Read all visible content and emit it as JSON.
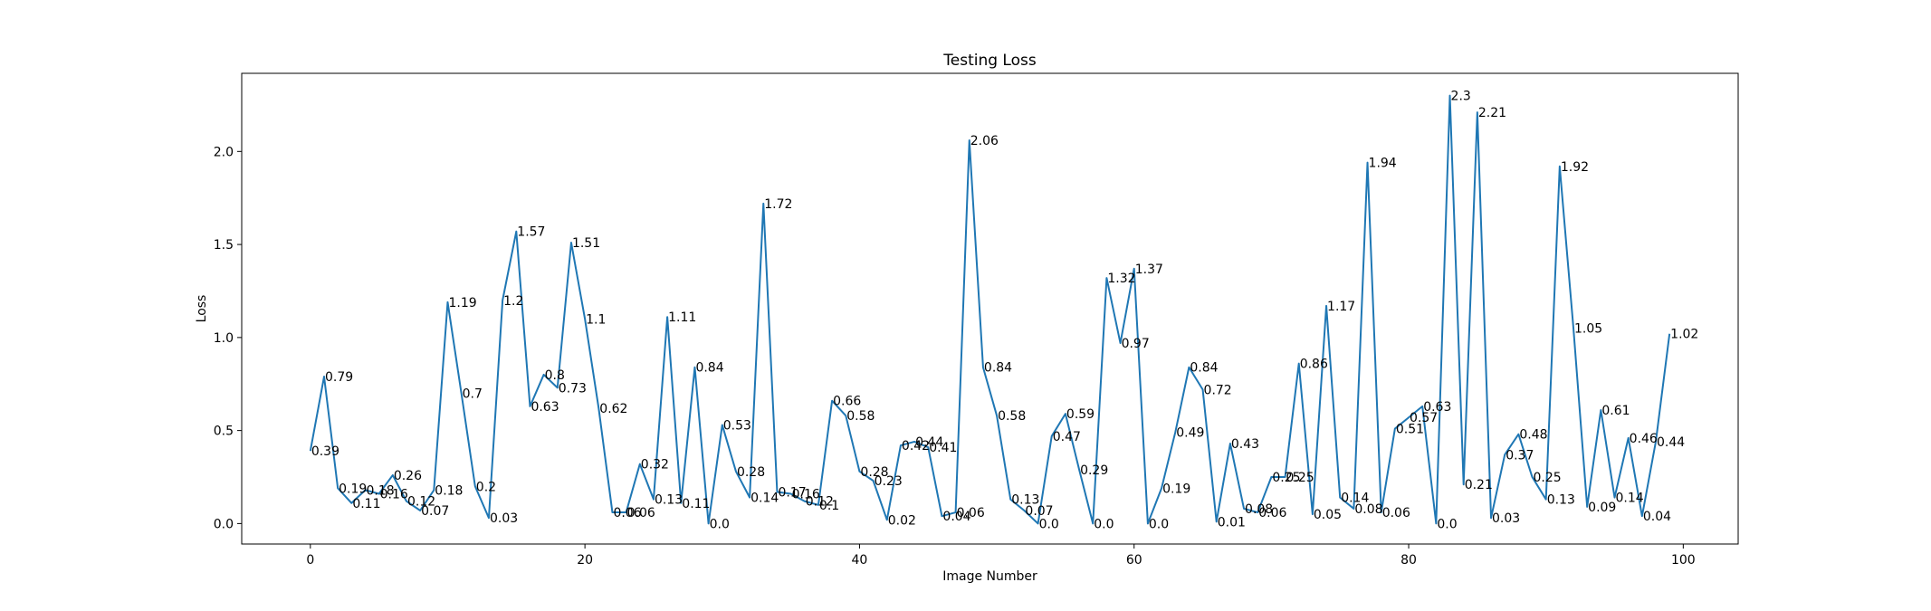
{
  "chart_data": {
    "type": "line",
    "title": "Testing Loss",
    "xlabel": "Image Number",
    "ylabel": "Loss",
    "xlim": [
      -5,
      104
    ],
    "ylim": [
      -0.11,
      2.42
    ],
    "xticks": [
      0,
      20,
      40,
      60,
      80,
      100
    ],
    "xtick_labels": [
      "0",
      "20",
      "40",
      "60",
      "80",
      "100"
    ],
    "yticks": [
      0.0,
      0.5,
      1.0,
      1.5,
      2.0
    ],
    "ytick_labels": [
      "0.0",
      "0.5",
      "1.0",
      "1.5",
      "2.0"
    ],
    "grid": false,
    "line_color": "#1f77b4",
    "x": [
      0,
      1,
      2,
      3,
      4,
      5,
      6,
      7,
      8,
      9,
      10,
      11,
      12,
      13,
      14,
      15,
      16,
      17,
      18,
      19,
      20,
      21,
      22,
      23,
      24,
      25,
      26,
      27,
      28,
      29,
      30,
      31,
      32,
      33,
      34,
      35,
      36,
      37,
      38,
      39,
      40,
      41,
      42,
      43,
      44,
      45,
      46,
      47,
      48,
      49,
      50,
      51,
      52,
      53,
      54,
      55,
      56,
      57,
      58,
      59,
      60,
      61,
      62,
      63,
      64,
      65,
      66,
      67,
      68,
      69,
      70,
      71,
      72,
      73,
      74,
      75,
      76,
      77,
      78,
      79,
      80,
      81,
      82,
      83,
      84,
      85,
      86,
      87,
      88,
      89,
      90,
      91,
      92,
      93,
      94,
      95,
      96,
      97,
      98,
      99
    ],
    "values": [
      0.39,
      0.79,
      0.19,
      0.11,
      0.18,
      0.16,
      0.26,
      0.12,
      0.07,
      0.18,
      1.19,
      0.7,
      0.2,
      0.03,
      1.2,
      1.57,
      0.63,
      0.8,
      0.73,
      1.51,
      1.1,
      0.62,
      0.06,
      0.06,
      0.32,
      0.13,
      1.11,
      0.11,
      0.84,
      0.0,
      0.53,
      0.28,
      0.14,
      1.72,
      0.17,
      0.16,
      0.12,
      0.1,
      0.66,
      0.58,
      0.28,
      0.23,
      0.02,
      0.42,
      0.44,
      0.41,
      0.04,
      0.06,
      2.06,
      0.84,
      0.58,
      0.13,
      0.07,
      0.0,
      0.47,
      0.59,
      0.29,
      0.0,
      1.32,
      0.97,
      1.37,
      0.0,
      0.19,
      0.49,
      0.84,
      0.72,
      0.01,
      0.43,
      0.08,
      0.06,
      0.25,
      0.25,
      0.86,
      0.05,
      1.17,
      0.14,
      0.08,
      1.94,
      0.06,
      0.51,
      0.57,
      0.63,
      0.0,
      2.3,
      0.21,
      2.21,
      0.03,
      0.37,
      0.48,
      0.25,
      0.13,
      1.92,
      1.05,
      0.09,
      0.61,
      0.14,
      0.46,
      0.04,
      0.44,
      1.02
    ],
    "labels": [
      "0.39",
      "0.79",
      "0.19",
      "0.11",
      "0.18",
      "0.16",
      "0.26",
      "0.12",
      "0.07",
      "0.18",
      "1.19",
      "0.7",
      "0.2",
      "0.03",
      "1.2",
      "1.57",
      "0.63",
      "0.8",
      "0.73",
      "1.51",
      "1.1",
      "0.62",
      "0.06",
      "0.06",
      "0.32",
      "0.13",
      "1.11",
      "0.11",
      "0.84",
      "0.0",
      "0.53",
      "0.28",
      "0.14",
      "1.72",
      "0.17",
      "0.16",
      "0.12",
      "0.1",
      "0.66",
      "0.58",
      "0.28",
      "0.23",
      "0.02",
      "0.42",
      "0.44",
      "0.41",
      "0.04",
      "0.06",
      "2.06",
      "0.84",
      "0.58",
      "0.13",
      "0.07",
      "0.0",
      "0.47",
      "0.59",
      "0.29",
      "0.0",
      "1.32",
      "0.97",
      "1.37",
      "0.0",
      "0.19",
      "0.49",
      "0.84",
      "0.72",
      "0.01",
      "0.43",
      "0.08",
      "0.06",
      "0.25",
      "0.25",
      "0.86",
      "0.05",
      "1.17",
      "0.14",
      "0.08",
      "1.94",
      "0.06",
      "0.51",
      "0.57",
      "0.63",
      "0.0",
      "2.3",
      "0.21",
      "2.21",
      "0.03",
      "0.37",
      "0.48",
      "0.25",
      "0.13",
      "1.92",
      "1.05",
      "0.09",
      "0.61",
      "0.14",
      "0.46",
      "0.04",
      "0.44",
      "1.02"
    ]
  }
}
